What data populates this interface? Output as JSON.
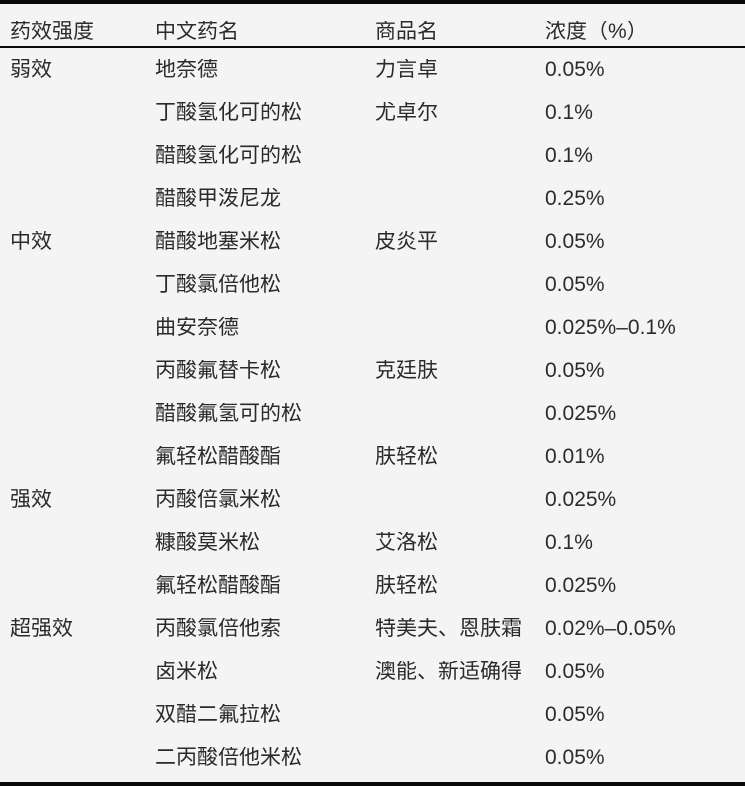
{
  "colors": {
    "background": "#f5f4f5",
    "text": "#2b2b2b",
    "border": "#0a0a0a"
  },
  "table": {
    "headers": [
      "药效强度",
      "中文药名",
      "商品名",
      "浓度（%）"
    ],
    "groups": [
      {
        "potency": "弱效",
        "rows": [
          {
            "name": "地奈德",
            "brand": "力言卓",
            "concentration": "0.05%"
          },
          {
            "name": "丁酸氢化可的松",
            "brand": "尤卓尔",
            "concentration": "0.1%"
          },
          {
            "name": "醋酸氢化可的松",
            "brand": "",
            "concentration": "0.1%"
          },
          {
            "name": "醋酸甲泼尼龙",
            "brand": "",
            "concentration": "0.25%"
          }
        ]
      },
      {
        "potency": "中效",
        "rows": [
          {
            "name": "醋酸地塞米松",
            "brand": "皮炎平",
            "concentration": "0.05%"
          },
          {
            "name": "丁酸氯倍他松",
            "brand": "",
            "concentration": "0.05%"
          },
          {
            "name": "曲安奈德",
            "brand": "",
            "concentration": "0.025%–0.1%"
          },
          {
            "name": "丙酸氟替卡松",
            "brand": "克廷肤",
            "concentration": "0.05%"
          },
          {
            "name": "醋酸氟氢可的松",
            "brand": "",
            "concentration": "0.025%"
          },
          {
            "name": "氟轻松醋酸酯",
            "brand": "肤轻松",
            "concentration": "0.01%"
          }
        ]
      },
      {
        "potency": "强效",
        "rows": [
          {
            "name": "丙酸倍氯米松",
            "brand": "",
            "concentration": "0.025%"
          },
          {
            "name": "糠酸莫米松",
            "brand": "艾洛松",
            "concentration": "0.1%"
          },
          {
            "name": "氟轻松醋酸酯",
            "brand": "肤轻松",
            "concentration": "0.025%"
          }
        ]
      },
      {
        "potency": "超强效",
        "rows": [
          {
            "name": "丙酸氯倍他索",
            "brand": "特美夫、恩肤霜",
            "concentration": "0.02%–0.05%"
          },
          {
            "name": "卤米松",
            "brand": "澳能、新适确得",
            "concentration": "0.05%"
          },
          {
            "name": "双醋二氟拉松",
            "brand": "",
            "concentration": "0.05%"
          },
          {
            "name": "二丙酸倍他米松",
            "brand": "",
            "concentration": "0.05%"
          }
        ]
      }
    ]
  }
}
